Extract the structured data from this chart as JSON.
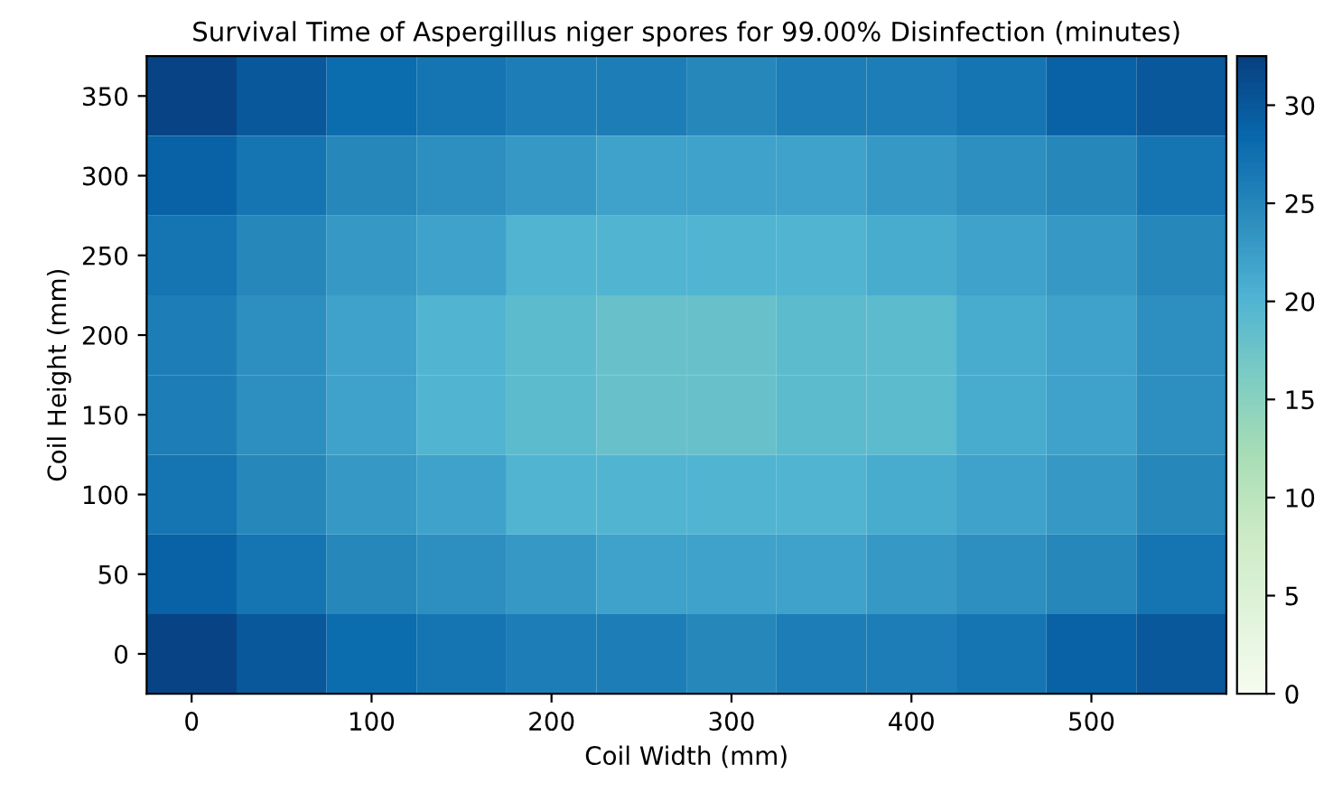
{
  "chart_data": {
    "type": "heatmap",
    "title": "Survival Time of Aspergillus niger spores for 99.00% Disinfection (minutes)",
    "xlabel": "Coil Width (mm)",
    "ylabel": "Coil Height (mm)",
    "categories": [
      "0",
      null,
      "100",
      null,
      "200",
      null,
      "300",
      null,
      "400",
      null,
      "500",
      null
    ],
    "y_categories": [
      "350",
      "300",
      "250",
      "200",
      "150",
      "100",
      "50",
      "0"
    ],
    "cells": [
      [
        32,
        30,
        28,
        27,
        26,
        26,
        25,
        26,
        26,
        27,
        29,
        30
      ],
      [
        29,
        27,
        25,
        24,
        23,
        22,
        22,
        22,
        23,
        24,
        25,
        27
      ],
      [
        27,
        25,
        23,
        22,
        20,
        20,
        20,
        20,
        21,
        22,
        23,
        25
      ],
      [
        26,
        24,
        22,
        20,
        19,
        18,
        18,
        19,
        19,
        21,
        22,
        24
      ],
      [
        26,
        24,
        22,
        20,
        19,
        18,
        18,
        19,
        19,
        21,
        22,
        24
      ],
      [
        27,
        25,
        23,
        22,
        20,
        20,
        20,
        20,
        21,
        22,
        23,
        25
      ],
      [
        29,
        27,
        25,
        24,
        23,
        22,
        22,
        22,
        23,
        24,
        25,
        27
      ],
      [
        32,
        30,
        28,
        27,
        26,
        26,
        25,
        26,
        26,
        27,
        29,
        30
      ]
    ],
    "clim": [
      0,
      32.5
    ],
    "cticks": [
      0,
      5,
      10,
      15,
      20,
      25,
      30
    ]
  }
}
